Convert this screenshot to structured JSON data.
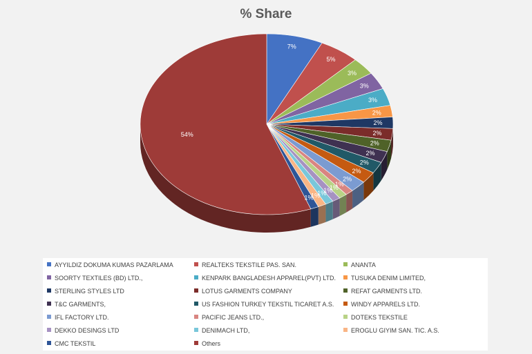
{
  "chart_data": {
    "type": "pie",
    "title": "% Share",
    "legend_position": "bottom",
    "slices": [
      {
        "name": "AYYILDIZ DOKUMA KUMAS PAZARLAMA",
        "value": 7,
        "label": "7%",
        "color": "#4472c4"
      },
      {
        "name": "REALTEKS TEKSTILE PAS. SAN.",
        "value": 5,
        "label": "5%",
        "color": "#c0504d"
      },
      {
        "name": "ANANTA",
        "value": 3,
        "label": "3%",
        "color": "#9bbb59"
      },
      {
        "name": "SOORTY TEXTILES (BD) LTD.,",
        "value": 3,
        "label": "3%",
        "color": "#8064a2"
      },
      {
        "name": "KENPARK BANGLADESH APPAREL(PVT) LTD.",
        "value": 3,
        "label": "3%",
        "color": "#4bacc6"
      },
      {
        "name": "TUSUKA DENIM LIMITED,",
        "value": 2,
        "label": "2%",
        "color": "#f79646"
      },
      {
        "name": "STERLING STYLES LTD",
        "value": 2,
        "label": "2%",
        "color": "#1f3864"
      },
      {
        "name": "LOTUS GARMENTS COMPANY",
        "value": 2,
        "label": "2%",
        "color": "#7b2c2a"
      },
      {
        "name": "REFAT GARMENTS LTD.",
        "value": 2,
        "label": "2%",
        "color": "#4f6228"
      },
      {
        "name": "T&C GARMENTS,",
        "value": 2,
        "label": "2%",
        "color": "#3f3151"
      },
      {
        "name": "US FASHION TURKEY TEKSTIL TICARET A.S.",
        "value": 2,
        "label": "2%",
        "color": "#215967"
      },
      {
        "name": "WINDY APPARELS LTD.",
        "value": 2,
        "label": "2%",
        "color": "#c55a11"
      },
      {
        "name": "IFL FACTORY LTD.",
        "value": 2,
        "label": "2%",
        "color": "#7b9bd1"
      },
      {
        "name": "PACIFIC JEANS LTD.,",
        "value": 1,
        "label": "1%",
        "color": "#d98581"
      },
      {
        "name": "DOTEKS TEKSTILE",
        "value": 1,
        "label": "1%",
        "color": "#b8d286"
      },
      {
        "name": "DEKKO DESINGS LTD",
        "value": 1,
        "label": "1%",
        "color": "#a692c2"
      },
      {
        "name": "DENIMACH LTD,",
        "value": 1,
        "label": "1%",
        "color": "#79c7da"
      },
      {
        "name": "EROGLU GIYIM SAN. TIC. A.S.",
        "value": 1,
        "label": "1%",
        "color": "#f9b585"
      },
      {
        "name": "CMC TEKSTIL",
        "value": 1,
        "label": "1%",
        "color": "#2e5597"
      },
      {
        "name": "Others",
        "value": 54,
        "label": "54%",
        "color": "#9e3b38"
      }
    ]
  }
}
